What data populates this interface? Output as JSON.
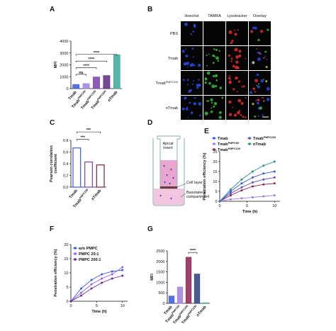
{
  "panel_labels": [
    "A",
    "B",
    "C",
    "D",
    "E",
    "F",
    "G"
  ],
  "micrograph": {
    "columns": [
      "Hoechst",
      "TAMRA",
      "Lysotracker",
      "Overlay"
    ],
    "rows": [
      {
        "name": "PBS"
      },
      {
        "name": "Tmab"
      },
      {
        "name": "Tmab",
        "sup": "PMPC100"
      },
      {
        "name": "nTmab"
      }
    ]
  },
  "diagram": {
    "labels": [
      [
        "Apical",
        "insert"
      ],
      [
        "Cell layer"
      ],
      [
        "Basolateral",
        "compartment"
      ]
    ]
  },
  "chart_data": [
    {
      "type": "bar",
      "y_label": [
        "MFI"
      ],
      "categories": [
        "Tmab",
        "Tmab",
        "Tmab",
        "Tmab",
        "nTmab"
      ],
      "category_superscripts": [
        null,
        "PMPC50",
        "PMPC100",
        "PMPC200",
        null
      ],
      "values": [
        350,
        420,
        980,
        1100,
        2850
      ],
      "colors": [
        "#3b5bdb",
        "#9b7fe0",
        "#7a3fb0",
        "#5a2a80",
        "#3aa89a"
      ],
      "filled": true,
      "ylim": [
        0,
        4000
      ],
      "yticks": [
        0,
        1000,
        2000,
        3000,
        4000
      ],
      "significance": [
        {
          "from": 0,
          "to": 1,
          "label": "ns"
        },
        {
          "from": 0,
          "to": 2,
          "label": "****"
        },
        {
          "from": 0,
          "to": 3,
          "label": "****"
        },
        {
          "from": 0,
          "to": 4,
          "label": "****"
        }
      ]
    },
    {
      "type": "bar",
      "y_label": [
        "Pearson correlation",
        "coefficient"
      ],
      "categories": [
        "Tmab",
        "Tmab",
        "nTmab"
      ],
      "category_superscripts": [
        null,
        "PMPC100",
        null
      ],
      "values": [
        0.67,
        0.43,
        0.38
      ],
      "colors": [
        "#3b5bdb",
        "#7a3fb0",
        "#7a2040"
      ],
      "filled": false,
      "ylim": [
        0,
        0.8
      ],
      "yticks": [
        {
          "value": 0,
          "label": "0.0"
        },
        0.2,
        0.4,
        0.6,
        0.8
      ],
      "significance": [
        {
          "from": 0,
          "to": 1,
          "label": "***"
        },
        {
          "from": 0,
          "to": 2,
          "label": "***"
        }
      ]
    },
    {
      "type": "line",
      "x_label": "Time (h)",
      "y_label": "Penetration efficiency (%)",
      "x": [
        0,
        2,
        4,
        6,
        8,
        10
      ],
      "series": [
        {
          "name": "Tmab",
          "color": "#3b5bdb",
          "values": [
            0,
            5,
            9,
            12,
            14,
            15
          ]
        },
        {
          "name": "Tmab",
          "sup": "PMPC50",
          "color": "#9b7fe0",
          "values": [
            0,
            1,
            1.5,
            2,
            2.5,
            3
          ]
        },
        {
          "name": "Tmab",
          "sup": "PMPC100",
          "color": "#8b2252",
          "values": [
            0,
            3,
            5.5,
            7.5,
            8.5,
            9
          ]
        },
        {
          "name": "Tmab",
          "sup": "PMPC200",
          "color": "#5a4fc0",
          "values": [
            0,
            4,
            7,
            9.5,
            11,
            12
          ]
        },
        {
          "name": "nTmab",
          "color": "#2a8f8f",
          "values": [
            0,
            6,
            11,
            15,
            18,
            20
          ]
        }
      ],
      "xlim": [
        0,
        11
      ],
      "ylim": [
        0,
        25
      ],
      "xticks": [
        0,
        5,
        10
      ],
      "yticks": [
        0,
        5,
        10,
        15,
        20,
        25
      ]
    },
    {
      "type": "line",
      "x_label": "Time (h)",
      "y_label": "Penetration efficiency (%)",
      "x": [
        0,
        2,
        4,
        6,
        8,
        10
      ],
      "series": [
        {
          "name": "w/o PMPC",
          "color": "#3b5bdb",
          "values": [
            0,
            4.5,
            7.5,
            9.5,
            10.5,
            11
          ]
        },
        {
          "name": "PMPC 20:1",
          "color": "#9b5fe0",
          "values": [
            0,
            3,
            6,
            8,
            9.5,
            12
          ]
        },
        {
          "name": "PMPC 200:1",
          "color": "#6a2a90",
          "values": [
            0,
            2,
            4.5,
            6.5,
            8,
            9
          ]
        }
      ],
      "xlim": [
        0,
        11
      ],
      "ylim": [
        0,
        20
      ],
      "xticks": [
        0,
        5,
        10
      ],
      "yticks": [
        0,
        5,
        10,
        15,
        20
      ]
    },
    {
      "type": "bar",
      "y_label": [
        "MFI"
      ],
      "categories": [
        "Tmab",
        "Tmab",
        "Tmab",
        "Tmab",
        "nTmab"
      ],
      "category_superscripts": [
        null,
        "PMPC50",
        "PMPC100",
        "PMPC200",
        null
      ],
      "values": [
        350,
        780,
        2200,
        1400,
        30
      ],
      "colors": [
        "#3b5bdb",
        "#9b7fe0",
        "#8b2252",
        "#2c3e80",
        "#3aa89a"
      ],
      "filled": true,
      "ylim": [
        0,
        2500
      ],
      "yticks": [
        0,
        500,
        1000,
        1500,
        2000,
        2500
      ],
      "significance": [
        {
          "from": 2,
          "to": 3,
          "label": "****"
        }
      ]
    }
  ]
}
